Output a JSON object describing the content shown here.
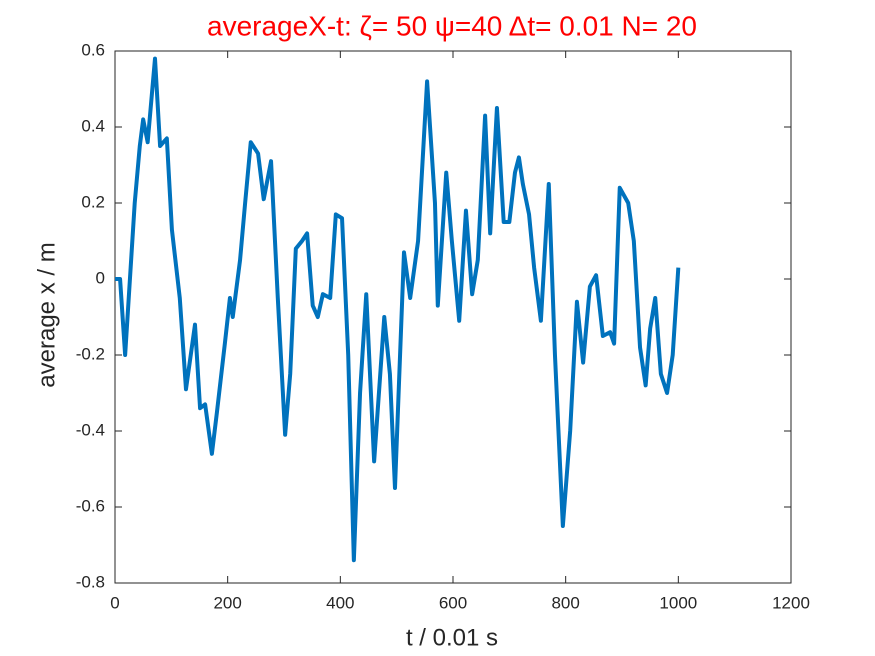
{
  "chart_data": {
    "type": "line",
    "title": "averageX-t:  ζ= 50 ψ=40 Δt= 0.01 N= 20",
    "x_label": "t / 0.01 s",
    "y_label": "average x / m",
    "x": [
      0,
      9,
      18,
      35,
      44,
      50,
      58,
      71,
      80,
      92,
      101,
      115,
      126,
      142,
      151,
      160,
      172,
      181,
      195,
      204,
      209,
      222,
      231,
      241,
      254,
      264,
      277,
      289,
      302,
      311,
      321,
      332,
      341,
      351,
      360,
      369,
      382,
      392,
      403,
      414,
      424,
      435,
      446,
      460,
      478,
      488,
      497,
      513,
      524,
      538,
      554,
      568,
      573,
      588,
      598,
      611,
      623,
      634,
      644,
      657,
      666,
      678,
      690,
      700,
      710,
      717,
      724,
      735,
      744,
      756,
      770,
      781,
      795,
      808,
      820,
      831,
      843,
      854,
      866,
      879,
      886,
      896,
      911,
      921,
      932,
      942,
      950,
      959,
      969,
      980,
      990,
      1000
    ],
    "series": [
      {
        "name": "average x",
        "color": "#0072bd",
        "values": [
          0,
          0,
          -0.2,
          0.2,
          0.35,
          0.42,
          0.36,
          0.58,
          0.35,
          0.37,
          0.13,
          -0.05,
          -0.29,
          -0.12,
          -0.34,
          -0.33,
          -0.46,
          -0.35,
          -0.17,
          -0.05,
          -0.1,
          0.05,
          0.2,
          0.36,
          0.33,
          0.21,
          0.31,
          -0.05,
          -0.41,
          -0.25,
          0.08,
          0.1,
          0.12,
          -0.07,
          -0.1,
          -0.04,
          -0.05,
          0.17,
          0.16,
          -0.2,
          -0.74,
          -0.3,
          -0.04,
          -0.48,
          -0.1,
          -0.25,
          -0.55,
          0.07,
          -0.05,
          0.1,
          0.52,
          0.2,
          -0.07,
          0.28,
          0.1,
          -0.11,
          0.18,
          -0.04,
          0.05,
          0.43,
          0.12,
          0.45,
          0.15,
          0.15,
          0.28,
          0.32,
          0.25,
          0.17,
          0.03,
          -0.11,
          0.25,
          -0.2,
          -0.65,
          -0.4,
          -0.06,
          -0.22,
          -0.02,
          0.01,
          -0.15,
          -0.14,
          -0.17,
          0.24,
          0.2,
          0.1,
          -0.18,
          -0.28,
          -0.13,
          -0.05,
          -0.25,
          -0.3,
          -0.2,
          0.03
        ]
      }
    ],
    "xlim": [
      0,
      1200
    ],
    "xticks": [
      0,
      200,
      400,
      600,
      800,
      1000,
      1200
    ],
    "ylim": [
      -0.8,
      0.6
    ],
    "yticks": [
      -0.8,
      -0.6,
      -0.4,
      -0.2,
      0,
      0.2,
      0.4,
      0.6
    ],
    "grid": false,
    "title_color": "#ff0000"
  }
}
